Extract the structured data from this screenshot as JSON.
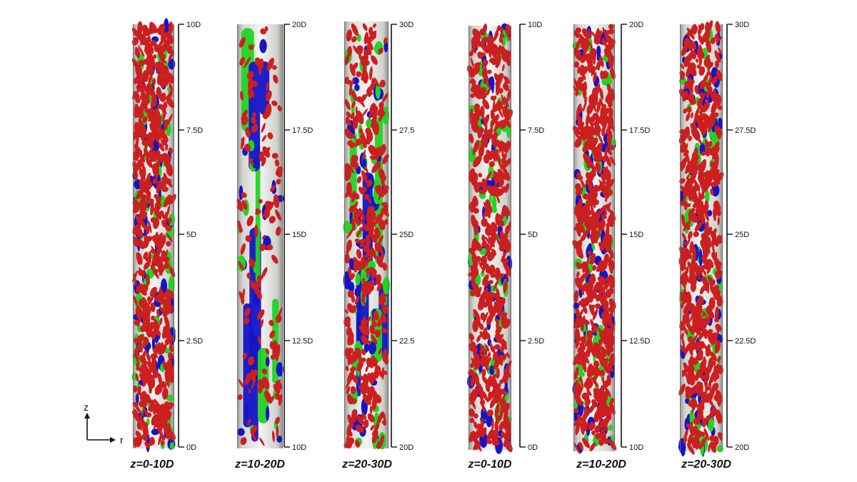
{
  "panels": [
    {
      "caption": "z=0-10D",
      "density": 1.0,
      "mode": "dense",
      "ticks": [
        "10D",
        "7.5D",
        "5D",
        "2.5D",
        "0D"
      ]
    },
    {
      "caption": "z=10-20D",
      "density": 0.2,
      "mode": "sparse",
      "ticks": [
        "20D",
        "17.5D",
        "15D",
        "12.5D",
        "10D"
      ]
    },
    {
      "caption": "z=20-30D",
      "density": 0.6,
      "mode": "mixed",
      "ticks": [
        "30D",
        "27.5",
        "25D",
        "22.5",
        "20D"
      ]
    },
    {
      "caption": "z=0-10D",
      "density": 0.85,
      "mode": "dense",
      "ticks": [
        "10D",
        "7.5D",
        "5D",
        "2.5D",
        "0D"
      ]
    },
    {
      "caption": "z=10-20D",
      "density": 1.0,
      "mode": "dense",
      "ticks": [
        "20D",
        "17.5D",
        "15D",
        "12.5D",
        "10D"
      ]
    },
    {
      "caption": "z=20-30D",
      "density": 0.95,
      "mode": "dense",
      "ticks": [
        "30D",
        "27.5D",
        "25D",
        "22.5D",
        "20D"
      ]
    }
  ],
  "axes": {
    "z_label": "z",
    "r_label": "r"
  },
  "colors": {
    "red": "#cc1f1f",
    "blue": "#1414c8",
    "green": "#22d422",
    "pipe": "#dcdcd8"
  }
}
